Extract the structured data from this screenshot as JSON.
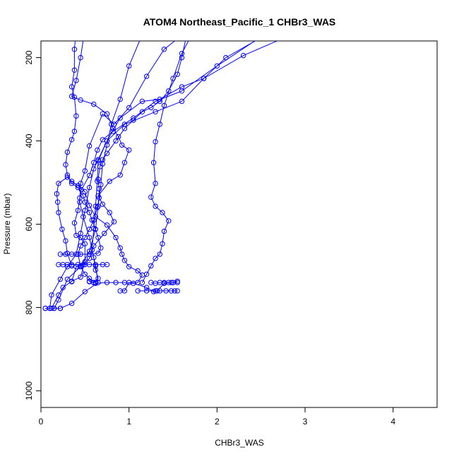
{
  "chart_data": {
    "type": "scatter",
    "title": "ATOM4 Northeast_Pacific_1 CHBr3_WAS",
    "xlabel": "CHBr3_WAS",
    "ylabel": "Pressure (mbar)",
    "xlim": [
      0,
      4.5
    ],
    "ylim": [
      1040,
      160
    ],
    "y_reversed": true,
    "x_ticks": [
      0,
      1,
      2,
      3,
      4
    ],
    "x_tick_labels": [
      "0",
      "1",
      "2",
      "3",
      "4"
    ],
    "y_ticks": [
      200,
      400,
      600,
      800,
      1000
    ],
    "y_tick_labels": [
      "200",
      "400",
      "600",
      "800",
      "1000"
    ],
    "grid": false,
    "color": "#0000FF",
    "series": [
      {
        "points": [
          [
            0.05,
            802
          ],
          [
            0.1,
            802
          ],
          [
            0.15,
            802
          ],
          [
            0.2,
            782
          ],
          [
            0.3,
            732
          ],
          [
            0.45,
            702
          ],
          [
            0.55,
            665
          ],
          [
            0.62,
            612
          ],
          [
            0.65,
            557
          ],
          [
            0.68,
            505
          ],
          [
            0.7,
            455
          ],
          [
            0.75,
            410
          ],
          [
            0.8,
            360
          ],
          [
            0.9,
            300
          ],
          [
            1.0,
            220
          ],
          [
            1.2,
            120
          ]
        ]
      },
      {
        "points": [
          [
            0.1,
            802
          ],
          [
            0.12,
            770
          ],
          [
            0.22,
            732
          ],
          [
            0.3,
            702
          ],
          [
            0.4,
            672
          ],
          [
            0.45,
            622
          ],
          [
            0.5,
            567
          ],
          [
            0.55,
            512
          ],
          [
            0.6,
            467
          ],
          [
            0.65,
            445
          ],
          [
            0.75,
            400
          ],
          [
            0.9,
            345
          ],
          [
            1.15,
            305
          ],
          [
            1.35,
            300
          ],
          [
            1.6,
            270
          ],
          [
            1.85,
            250
          ],
          [
            2.1,
            200
          ],
          [
            2.6,
            140
          ]
        ]
      },
      {
        "points": [
          [
            0.22,
            802
          ],
          [
            0.35,
            790
          ],
          [
            0.5,
            762
          ],
          [
            0.65,
            740
          ],
          [
            0.62,
            700
          ],
          [
            0.58,
            662
          ],
          [
            0.6,
            610
          ],
          [
            0.62,
            557
          ],
          [
            0.64,
            497
          ],
          [
            0.65,
            448
          ],
          [
            0.75,
            400
          ],
          [
            0.95,
            360
          ],
          [
            1.3,
            330
          ],
          [
            1.6,
            305
          ],
          [
            1.85,
            250
          ],
          [
            2.3,
            195
          ],
          [
            2.9,
            140
          ]
        ]
      },
      {
        "points": [
          [
            0.55,
            738
          ],
          [
            0.6,
            740
          ],
          [
            0.65,
            730
          ],
          [
            0.62,
            710
          ],
          [
            0.6,
            680
          ],
          [
            0.55,
            632
          ],
          [
            0.48,
            582
          ],
          [
            0.44,
            547
          ],
          [
            0.45,
            502
          ],
          [
            0.5,
            472
          ],
          [
            0.55,
            412
          ],
          [
            0.7,
            335
          ],
          [
            0.83,
            360
          ],
          [
            1.0,
            320
          ],
          [
            1.2,
            245
          ],
          [
            1.4,
            180
          ],
          [
            1.7,
            130
          ]
        ]
      },
      {
        "points": [
          [
            0.12,
            802
          ],
          [
            0.2,
            770
          ],
          [
            0.25,
            752
          ],
          [
            0.35,
            737
          ],
          [
            0.45,
            727
          ],
          [
            0.5,
            690
          ],
          [
            0.5,
            647
          ],
          [
            0.45,
            632
          ],
          [
            0.4,
            627
          ],
          [
            0.38,
            597
          ],
          [
            0.42,
            567
          ],
          [
            0.44,
            537
          ],
          [
            0.46,
            517
          ],
          [
            0.55,
            483
          ],
          [
            0.6,
            452
          ],
          [
            0.64,
            422
          ],
          [
            0.7,
            397
          ],
          [
            0.82,
            377
          ],
          [
            1.05,
            345
          ],
          [
            1.3,
            305
          ],
          [
            1.6,
            280
          ],
          [
            2.0,
            220
          ],
          [
            2.5,
            150
          ]
        ]
      },
      {
        "points": [
          [
            0.9,
            760
          ],
          [
            0.95,
            760
          ],
          [
            1.0,
            740
          ],
          [
            1.1,
            740
          ],
          [
            1.15,
            722
          ],
          [
            1.1,
            712
          ],
          [
            1.0,
            702
          ],
          [
            0.95,
            687
          ],
          [
            0.92,
            672
          ],
          [
            0.9,
            657
          ],
          [
            0.85,
            632
          ],
          [
            0.75,
            602
          ],
          [
            0.62,
            582
          ],
          [
            0.55,
            555
          ],
          [
            0.5,
            522
          ],
          [
            0.42,
            507
          ],
          [
            0.35,
            497
          ],
          [
            0.3,
            487
          ],
          [
            0.2,
            502
          ],
          [
            0.18,
            527
          ],
          [
            0.19,
            547
          ],
          [
            0.2,
            572
          ],
          [
            0.24,
            612
          ],
          [
            0.28,
            640
          ],
          [
            0.3,
            670
          ],
          [
            0.35,
            700
          ]
        ]
      },
      {
        "points": [
          [
            0.62,
            742
          ],
          [
            0.75,
            740
          ],
          [
            0.85,
            740
          ],
          [
            0.95,
            740
          ],
          [
            1.05,
            742
          ],
          [
            1.2,
            752
          ],
          [
            1.28,
            762
          ],
          [
            1.32,
            760
          ],
          [
            1.4,
            742
          ],
          [
            1.5,
            740
          ],
          [
            1.55,
            740
          ]
        ]
      },
      {
        "points": [
          [
            1.1,
            760
          ],
          [
            1.2,
            760
          ],
          [
            1.3,
            760
          ],
          [
            1.35,
            760
          ],
          [
            1.42,
            760
          ],
          [
            1.48,
            760
          ],
          [
            1.52,
            760
          ],
          [
            1.55,
            760
          ]
        ]
      },
      {
        "points": [
          [
            1.25,
            740
          ],
          [
            1.3,
            742
          ],
          [
            1.35,
            740
          ],
          [
            1.4,
            740
          ],
          [
            1.45,
            740
          ],
          [
            1.48,
            740
          ],
          [
            1.5,
            740
          ],
          [
            1.55,
            737
          ]
        ]
      },
      {
        "points": [
          [
            1.15,
            740
          ],
          [
            1.2,
            720
          ],
          [
            1.25,
            700
          ],
          [
            1.3,
            682
          ],
          [
            1.35,
            672
          ],
          [
            1.38,
            647
          ],
          [
            1.4,
            617
          ],
          [
            1.45,
            592
          ],
          [
            1.38,
            572
          ],
          [
            1.3,
            557
          ],
          [
            1.25,
            535
          ],
          [
            1.3,
            502
          ],
          [
            1.28,
            452
          ],
          [
            1.3,
            402
          ],
          [
            1.35,
            360
          ],
          [
            1.4,
            315
          ],
          [
            1.5,
            250
          ],
          [
            1.6,
            190
          ],
          [
            1.75,
            130
          ]
        ]
      },
      {
        "points": [
          [
            0.05,
            802
          ],
          [
            0.15,
            802
          ],
          [
            0.22,
            802
          ]
        ]
      },
      {
        "points": [
          [
            0.35,
            738
          ],
          [
            0.4,
            702
          ],
          [
            0.48,
            697
          ],
          [
            0.55,
            682
          ],
          [
            0.6,
            652
          ],
          [
            0.72,
            622
          ],
          [
            0.83,
            594
          ],
          [
            0.78,
            572
          ],
          [
            0.7,
            552
          ],
          [
            0.65,
            532
          ],
          [
            0.78,
            497
          ],
          [
            0.9,
            482
          ],
          [
            0.95,
            452
          ],
          [
            1.0,
            422
          ],
          [
            0.92,
            410
          ],
          [
            0.88,
            390
          ],
          [
            0.82,
            370
          ],
          [
            0.75,
            335
          ],
          [
            0.6,
            312
          ],
          [
            0.45,
            302
          ],
          [
            0.35,
            293
          ],
          [
            0.4,
            255
          ],
          [
            0.45,
            200
          ],
          [
            0.5,
            130
          ]
        ]
      },
      {
        "points": [
          [
            0.2,
            697
          ],
          [
            0.25,
            697
          ],
          [
            0.3,
            697
          ],
          [
            0.35,
            697
          ],
          [
            0.42,
            697
          ],
          [
            0.5,
            697
          ],
          [
            0.55,
            697
          ],
          [
            0.62,
            697
          ],
          [
            0.7,
            697
          ],
          [
            0.75,
            697
          ]
        ]
      },
      {
        "points": [
          [
            0.22,
            672
          ],
          [
            0.28,
            672
          ],
          [
            0.35,
            672
          ],
          [
            0.45,
            672
          ],
          [
            0.55,
            672
          ],
          [
            0.65,
            670
          ],
          [
            0.68,
            657
          ],
          [
            0.65,
            632
          ],
          [
            0.62,
            612
          ],
          [
            0.58,
            590
          ],
          [
            0.55,
            572
          ],
          [
            0.5,
            547
          ],
          [
            0.48,
            532
          ],
          [
            0.42,
            512
          ],
          [
            0.35,
            502
          ],
          [
            0.3,
            482
          ],
          [
            0.28,
            457
          ],
          [
            0.3,
            427
          ],
          [
            0.35,
            397
          ],
          [
            0.38,
            377
          ],
          [
            0.4,
            340
          ],
          [
            0.38,
            295
          ],
          [
            0.35,
            270
          ],
          [
            0.38,
            230
          ],
          [
            0.38,
            180
          ],
          [
            0.4,
            130
          ]
        ]
      },
      {
        "points": [
          [
            0.55,
            737
          ],
          [
            0.6,
            740
          ],
          [
            0.62,
            740
          ],
          [
            0.55,
            730
          ],
          [
            0.5,
            720
          ],
          [
            0.45,
            700
          ],
          [
            0.42,
            672
          ],
          [
            0.45,
            652
          ],
          [
            0.5,
            632
          ],
          [
            0.55,
            612
          ],
          [
            0.6,
            590
          ],
          [
            0.64,
            560
          ],
          [
            0.66,
            537
          ],
          [
            0.66,
            515
          ],
          [
            0.65,
            492
          ],
          [
            0.67,
            462
          ],
          [
            0.7,
            445
          ],
          [
            0.75,
            430
          ],
          [
            0.85,
            400
          ],
          [
            0.95,
            370
          ],
          [
            1.05,
            350
          ],
          [
            1.15,
            330
          ],
          [
            1.25,
            320
          ],
          [
            1.35,
            305
          ],
          [
            1.45,
            280
          ],
          [
            1.55,
            240
          ],
          [
            1.6,
            200
          ],
          [
            1.65,
            150
          ]
        ]
      }
    ]
  }
}
